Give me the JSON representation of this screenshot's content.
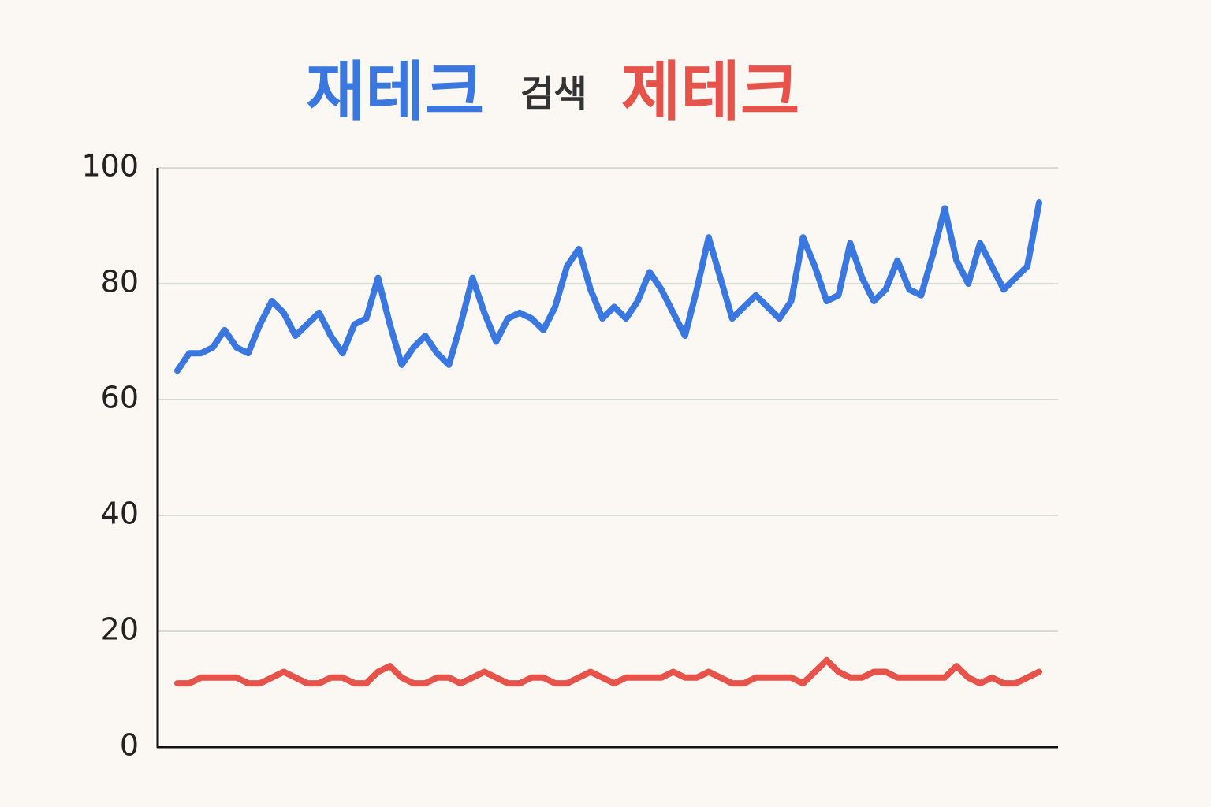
{
  "chart_data": {
    "type": "line",
    "title": "검색",
    "series": [
      {
        "name": "재테크",
        "color": "#3a78e0",
        "values": [
          65,
          68,
          68,
          69,
          72,
          69,
          68,
          73,
          77,
          75,
          71,
          73,
          75,
          71,
          68,
          73,
          74,
          81,
          73,
          66,
          69,
          71,
          68,
          66,
          73,
          81,
          75,
          70,
          74,
          75,
          74,
          72,
          76,
          83,
          86,
          79,
          74,
          76,
          74,
          77,
          82,
          79,
          75,
          71,
          79,
          88,
          81,
          74,
          76,
          78,
          76,
          74,
          77,
          88,
          83,
          77,
          78,
          87,
          81,
          77,
          79,
          84,
          79,
          78,
          85,
          93,
          84,
          80,
          87,
          83,
          79,
          81,
          83,
          94
        ]
      },
      {
        "name": "제테크",
        "color": "#e5534b",
        "values": [
          11,
          11,
          12,
          12,
          12,
          12,
          11,
          11,
          12,
          13,
          12,
          11,
          11,
          12,
          12,
          11,
          11,
          13,
          14,
          12,
          11,
          11,
          12,
          12,
          11,
          12,
          13,
          12,
          11,
          11,
          12,
          12,
          11,
          11,
          12,
          13,
          12,
          11,
          12,
          12,
          12,
          12,
          13,
          12,
          12,
          13,
          12,
          11,
          11,
          12,
          12,
          12,
          12,
          11,
          13,
          15,
          13,
          12,
          12,
          13,
          13,
          12,
          12,
          12,
          12,
          12,
          14,
          12,
          11,
          12,
          11,
          11,
          12,
          13
        ]
      }
    ],
    "ylim": [
      0,
      100
    ],
    "yticks": [
      0,
      20,
      40,
      60,
      80,
      100
    ],
    "grid": true
  }
}
